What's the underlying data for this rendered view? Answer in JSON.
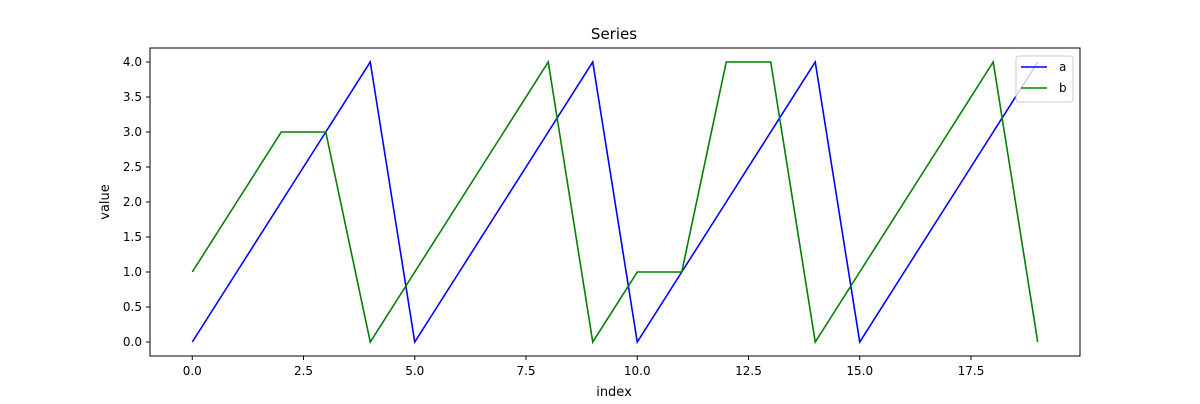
{
  "chart_data": {
    "type": "line",
    "title": "Series",
    "xlabel": "index",
    "ylabel": "value",
    "xlim": [
      -0.95,
      19.95
    ],
    "ylim": [
      -0.2,
      4.2
    ],
    "x": [
      0,
      1,
      2,
      3,
      4,
      5,
      6,
      7,
      8,
      9,
      10,
      11,
      12,
      13,
      14,
      15,
      16,
      17,
      18,
      19
    ],
    "x_ticks": [
      0.0,
      2.5,
      5.0,
      7.5,
      10.0,
      12.5,
      15.0,
      17.5
    ],
    "x_tick_labels": [
      "0.0",
      "2.5",
      "5.0",
      "7.5",
      "10.0",
      "12.5",
      "15.0",
      "17.5"
    ],
    "y_ticks": [
      0.0,
      0.5,
      1.0,
      1.5,
      2.0,
      2.5,
      3.0,
      3.5,
      4.0
    ],
    "y_tick_labels": [
      "0.0",
      "0.5",
      "1.0",
      "1.5",
      "2.0",
      "2.5",
      "3.0",
      "3.5",
      "4.0"
    ],
    "grid": false,
    "legend_position": "top-right",
    "series": [
      {
        "name": "a",
        "color": "#0000ff",
        "values": [
          0,
          1,
          2,
          3,
          4,
          0,
          1,
          2,
          3,
          4,
          0,
          1,
          2,
          3,
          4,
          0,
          1,
          2,
          3,
          4
        ]
      },
      {
        "name": "b",
        "color": "#008000",
        "values": [
          1,
          2,
          3,
          3,
          0,
          1,
          2,
          3,
          4,
          0,
          1,
          1,
          4,
          4,
          0,
          1,
          2,
          3,
          4,
          0
        ]
      }
    ]
  }
}
